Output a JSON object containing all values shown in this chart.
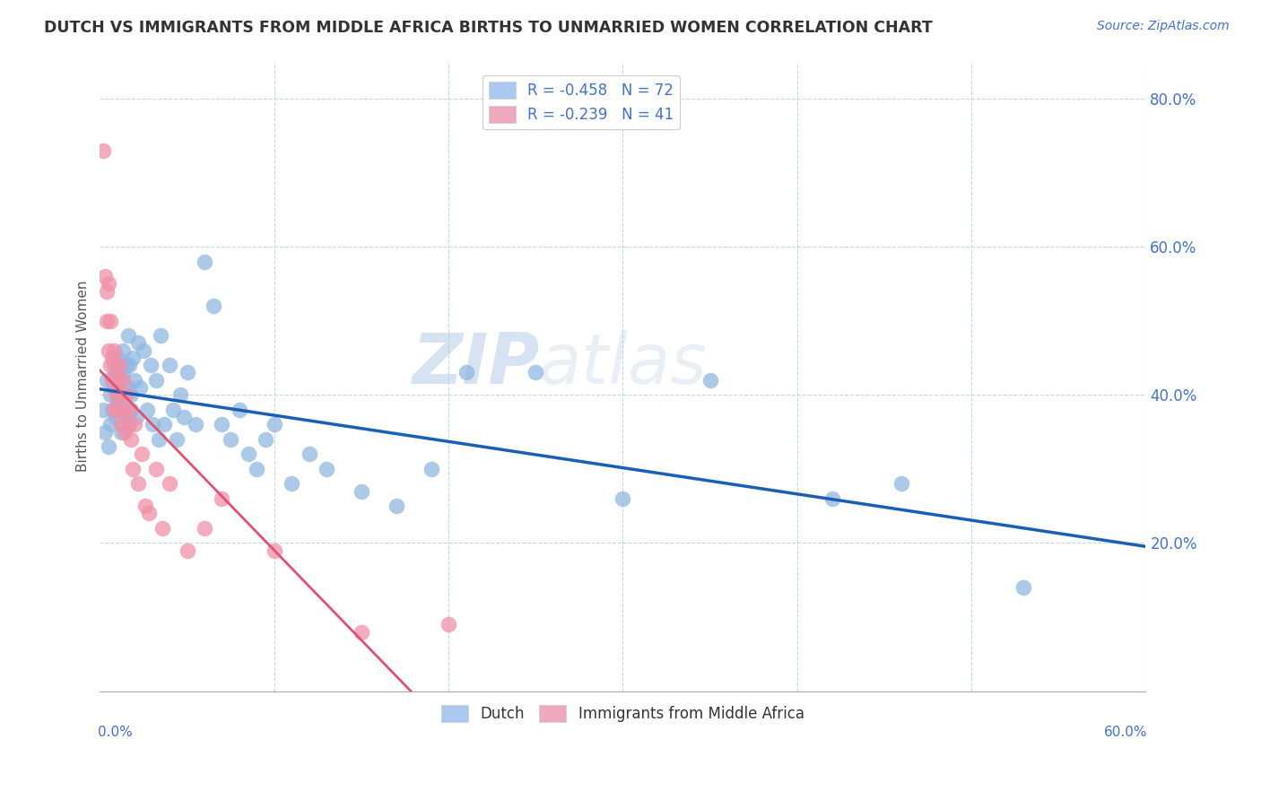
{
  "title": "DUTCH VS IMMIGRANTS FROM MIDDLE AFRICA BIRTHS TO UNMARRIED WOMEN CORRELATION CHART",
  "source": "Source: ZipAtlas.com",
  "ylabel": "Births to Unmarried Women",
  "right_yticks": [
    "80.0%",
    "60.0%",
    "40.0%",
    "20.0%"
  ],
  "right_ytick_vals": [
    0.8,
    0.6,
    0.4,
    0.2
  ],
  "watermark_zip": "ZIP",
  "watermark_atlas": "atlas",
  "legend_entries": [
    {
      "label": "R = -0.458   N = 72",
      "color": "#aac8f0"
    },
    {
      "label": "R = -0.239   N = 41",
      "color": "#f0a8bc"
    }
  ],
  "legend_bottom": [
    {
      "label": "Dutch",
      "color": "#aac8f0"
    },
    {
      "label": "Immigrants from Middle Africa",
      "color": "#f0a8bc"
    }
  ],
  "dutch_x": [
    0.002,
    0.003,
    0.004,
    0.005,
    0.006,
    0.006,
    0.007,
    0.007,
    0.008,
    0.008,
    0.009,
    0.009,
    0.01,
    0.01,
    0.011,
    0.011,
    0.012,
    0.012,
    0.013,
    0.013,
    0.014,
    0.014,
    0.015,
    0.015,
    0.016,
    0.016,
    0.017,
    0.017,
    0.018,
    0.018,
    0.019,
    0.02,
    0.021,
    0.022,
    0.023,
    0.025,
    0.027,
    0.029,
    0.03,
    0.032,
    0.034,
    0.035,
    0.037,
    0.04,
    0.042,
    0.044,
    0.046,
    0.048,
    0.05,
    0.055,
    0.06,
    0.065,
    0.07,
    0.075,
    0.08,
    0.085,
    0.09,
    0.095,
    0.1,
    0.11,
    0.12,
    0.13,
    0.15,
    0.17,
    0.19,
    0.21,
    0.25,
    0.3,
    0.35,
    0.42,
    0.46,
    0.53
  ],
  "dutch_y": [
    0.38,
    0.35,
    0.42,
    0.33,
    0.4,
    0.36,
    0.38,
    0.42,
    0.41,
    0.44,
    0.37,
    0.43,
    0.39,
    0.45,
    0.38,
    0.4,
    0.42,
    0.35,
    0.43,
    0.46,
    0.38,
    0.4,
    0.44,
    0.37,
    0.41,
    0.48,
    0.36,
    0.44,
    0.4,
    0.38,
    0.45,
    0.42,
    0.37,
    0.47,
    0.41,
    0.46,
    0.38,
    0.44,
    0.36,
    0.42,
    0.34,
    0.48,
    0.36,
    0.44,
    0.38,
    0.34,
    0.4,
    0.37,
    0.43,
    0.36,
    0.58,
    0.52,
    0.36,
    0.34,
    0.38,
    0.32,
    0.3,
    0.34,
    0.36,
    0.28,
    0.32,
    0.3,
    0.27,
    0.25,
    0.3,
    0.43,
    0.43,
    0.26,
    0.42,
    0.26,
    0.28,
    0.14
  ],
  "immig_x": [
    0.002,
    0.003,
    0.004,
    0.004,
    0.005,
    0.005,
    0.006,
    0.006,
    0.007,
    0.007,
    0.008,
    0.008,
    0.009,
    0.009,
    0.01,
    0.01,
    0.011,
    0.012,
    0.012,
    0.013,
    0.013,
    0.014,
    0.015,
    0.016,
    0.017,
    0.018,
    0.019,
    0.02,
    0.022,
    0.024,
    0.026,
    0.028,
    0.032,
    0.036,
    0.04,
    0.05,
    0.06,
    0.07,
    0.1,
    0.15,
    0.2
  ],
  "immig_y": [
    0.73,
    0.56,
    0.54,
    0.5,
    0.55,
    0.46,
    0.44,
    0.5,
    0.45,
    0.42,
    0.46,
    0.38,
    0.43,
    0.4,
    0.42,
    0.38,
    0.44,
    0.4,
    0.36,
    0.42,
    0.38,
    0.35,
    0.4,
    0.36,
    0.38,
    0.34,
    0.3,
    0.36,
    0.28,
    0.32,
    0.25,
    0.24,
    0.3,
    0.22,
    0.28,
    0.19,
    0.22,
    0.26,
    0.19,
    0.08,
    0.09
  ],
  "background_color": "#ffffff",
  "grid_color": "#c8d4e8",
  "dutch_dot_color": "#90b8e0",
  "immig_dot_color": "#f090a8",
  "blue_line_color": "#1a5fb4",
  "pink_line_color": "#e05070",
  "xlim": [
    0.0,
    0.6
  ],
  "ylim": [
    0.0,
    0.85
  ],
  "xtick_vals": [
    0.0,
    0.1,
    0.2,
    0.3,
    0.4,
    0.5,
    0.6
  ]
}
